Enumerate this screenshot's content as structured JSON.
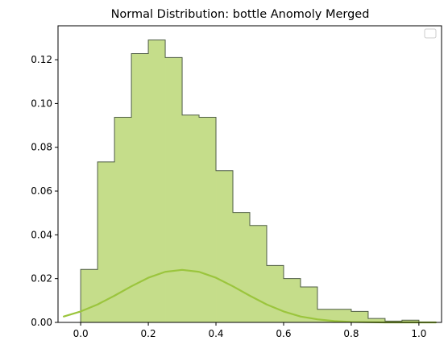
{
  "chart_data": {
    "type": "bar",
    "title": "Normal Distribution: bottle Anomoly Merged",
    "xlabel": "",
    "ylabel": "",
    "xlim": [
      -0.067,
      1.067
    ],
    "ylim": [
      0,
      0.1355
    ],
    "x_ticks": [
      0.0,
      0.2,
      0.4,
      0.6,
      0.8,
      1.0
    ],
    "x_tick_labels": [
      "0.0",
      "0.2",
      "0.4",
      "0.6",
      "0.8",
      "1.0"
    ],
    "y_ticks": [
      0.0,
      0.02,
      0.04,
      0.06,
      0.08,
      0.1,
      0.12
    ],
    "y_tick_labels": [
      "0.00",
      "0.02",
      "0.04",
      "0.06",
      "0.08",
      "0.10",
      "0.12"
    ],
    "histogram": {
      "bin_edges": [
        0.0,
        0.05,
        0.1,
        0.15,
        0.2,
        0.25,
        0.3,
        0.35,
        0.4,
        0.45,
        0.5,
        0.55,
        0.6,
        0.65,
        0.7,
        0.75,
        0.8,
        0.85,
        0.9,
        0.95,
        1.0
      ],
      "values": [
        0.0242,
        0.0733,
        0.0937,
        0.1228,
        0.129,
        0.121,
        0.0947,
        0.0937,
        0.0693,
        0.0502,
        0.0443,
        0.026,
        0.02,
        0.0162,
        0.006,
        0.006,
        0.005,
        0.0018,
        0.0006,
        0.001
      ],
      "fill_color": "#c5dd8a",
      "edge_color": "#4f5d46"
    },
    "curve": {
      "type": "normal-pdf",
      "x_range": [
        -0.05,
        1.05
      ],
      "samples": [
        [
          -0.05,
          0.0027
        ],
        [
          0.0,
          0.005
        ],
        [
          0.05,
          0.0082
        ],
        [
          0.1,
          0.0122
        ],
        [
          0.15,
          0.0165
        ],
        [
          0.2,
          0.0204
        ],
        [
          0.25,
          0.0231
        ],
        [
          0.3,
          0.024
        ],
        [
          0.35,
          0.0231
        ],
        [
          0.4,
          0.0204
        ],
        [
          0.45,
          0.0165
        ],
        [
          0.5,
          0.0122
        ],
        [
          0.55,
          0.0082
        ],
        [
          0.6,
          0.005
        ],
        [
          0.65,
          0.0027
        ],
        [
          0.7,
          0.0014
        ],
        [
          0.75,
          0.0006
        ],
        [
          0.8,
          0.0002
        ],
        [
          0.9,
          0.0
        ],
        [
          1.05,
          0.0
        ]
      ],
      "color": "#9bc53d"
    },
    "grid": false,
    "legend": {
      "placement": "top-right",
      "entries": []
    }
  }
}
